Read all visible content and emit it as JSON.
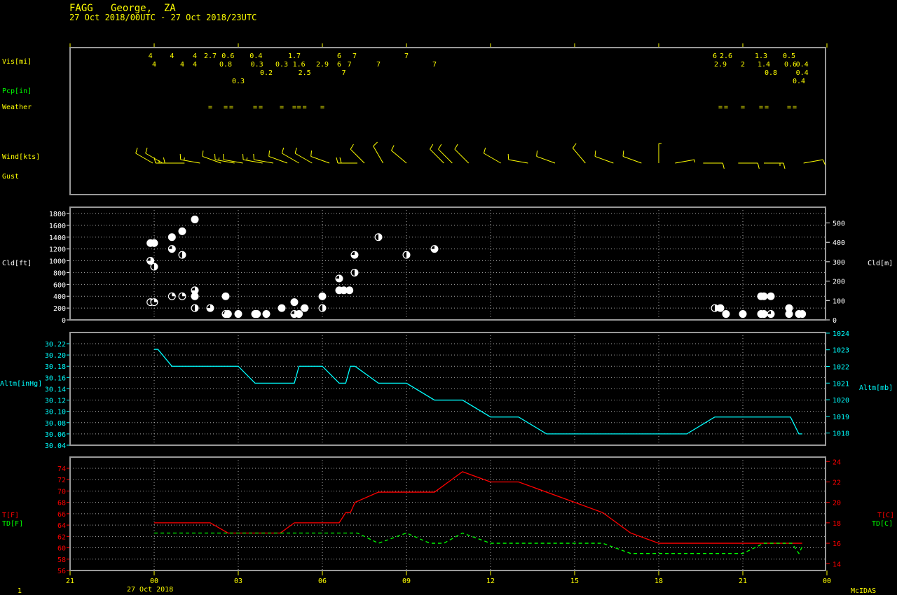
{
  "header": {
    "station": "FAGG   George,  ZA",
    "period": "27 Oct 2018/00UTC - 27 Oct 2018/23UTC"
  },
  "footer": {
    "frame": "1",
    "brand": "McIDAS",
    "date_label": "27 Oct 2018"
  },
  "colors": {
    "vis": "#ffff00",
    "pcp": "#00ff00",
    "cloud": "#ffffff",
    "altm": "#00ffff",
    "temp": "#ff0000",
    "dewpoint": "#00ff00",
    "frame": "#999999",
    "axis": "#ffff00"
  },
  "x_axis": {
    "ticks": [
      "21",
      "00",
      "03",
      "06",
      "09",
      "12",
      "15",
      "18",
      "21",
      "00"
    ],
    "range": [
      "26 21:00",
      "28 00:00"
    ]
  },
  "chart_data": [
    {
      "type": "table",
      "labels": {
        "vis": "Vis[mi]",
        "pcp": "Pcp[in]",
        "weather": "Weather",
        "wind": "Wind[kts]",
        "gust": "Gust"
      },
      "vis_row1": [
        [
          "26 23:52",
          "4"
        ],
        [
          "27 00:38",
          "4"
        ],
        [
          "27 01:27",
          "4"
        ],
        [
          "27 02:00",
          "2.7"
        ],
        [
          "27 02:38",
          "0.6"
        ],
        [
          "27 03:38",
          "0.4"
        ],
        [
          "27 04:00",
          "0.2"
        ],
        [
          "27 05:00",
          "1.7"
        ],
        [
          "27 05:22",
          "2.5"
        ],
        [
          "27 06:36",
          "6"
        ],
        [
          "27 06:46",
          "7"
        ],
        [
          "27 07:09",
          "7"
        ],
        [
          "27 09:00",
          "7"
        ],
        [
          "27 20:00",
          "6"
        ],
        [
          "27 20:24",
          "2.6"
        ],
        [
          "27 21:39",
          "1.3"
        ],
        [
          "27 22:00",
          "0.8"
        ],
        [
          "27 22:39",
          "0.5"
        ],
        [
          "27 23:07",
          "0.4"
        ]
      ],
      "vis_row2": [
        [
          "27 00:00",
          "4"
        ],
        [
          "27 01:00",
          "4"
        ],
        [
          "27 01:27",
          "4"
        ],
        [
          "27 02:33",
          "0.8"
        ],
        [
          "27 03:00",
          "0.3"
        ],
        [
          "27 03:40",
          "0.3"
        ],
        [
          "27 04:33",
          "0.3"
        ],
        [
          "27 05:10",
          "1.6"
        ],
        [
          "27 06:00",
          "2.9"
        ],
        [
          "27 06:36",
          "6"
        ],
        [
          "27 06:58",
          "7"
        ],
        [
          "27 08:00",
          "7"
        ],
        [
          "27 10:00",
          "7"
        ],
        [
          "27 20:12",
          "2.9"
        ],
        [
          "27 21:00",
          "2"
        ],
        [
          "27 21:45",
          "1.4"
        ],
        [
          "27 22:42",
          "0.6"
        ],
        [
          "27 23:00",
          "0.4"
        ],
        [
          "27 23:07",
          "0.4"
        ]
      ],
      "weather": {
        "symbol": "=",
        "times": [
          "27 02:00",
          "27 02:33",
          "27 02:45",
          "27 03:36",
          "27 03:48",
          "27 04:33",
          "27 05:00",
          "27 05:10",
          "27 05:22",
          "27 06:00",
          "27 20:12",
          "27 20:24",
          "27 21:00",
          "27 21:39",
          "27 21:51",
          "27 22:39",
          "27 22:51"
        ]
      },
      "wind": [
        [
          "26 23:57",
          300,
          10
        ],
        [
          "27 00:18",
          300,
          10
        ],
        [
          "27 00:45",
          270,
          15
        ],
        [
          "27 01:05",
          270,
          10
        ],
        [
          "27 01:38",
          280,
          15
        ],
        [
          "27 02:23",
          290,
          10
        ],
        [
          "27 02:52",
          280,
          15
        ],
        [
          "27 03:10",
          280,
          10
        ],
        [
          "27 03:52",
          280,
          15
        ],
        [
          "27 04:15",
          280,
          10
        ],
        [
          "27 04:45",
          290,
          10
        ],
        [
          "27 05:10",
          300,
          10
        ],
        [
          "27 05:38",
          300,
          10
        ],
        [
          "27 06:15",
          290,
          10
        ],
        [
          "27 07:15",
          270,
          20
        ],
        [
          "27 07:30",
          315,
          10
        ],
        [
          "27 08:10",
          330,
          10
        ],
        [
          "27 09:00",
          310,
          10
        ],
        [
          "27 10:20",
          315,
          10
        ],
        [
          "27 10:38",
          315,
          10
        ],
        [
          "27 11:13",
          315,
          10
        ],
        [
          "27 12:22",
          300,
          10
        ],
        [
          "27 13:20",
          280,
          10
        ],
        [
          "27 14:18",
          290,
          10
        ],
        [
          "27 15:23",
          320,
          10
        ],
        [
          "27 16:23",
          290,
          10
        ],
        [
          "27 17:23",
          290,
          10
        ],
        [
          "27 18:00",
          360,
          5
        ],
        [
          "27 18:35",
          80,
          5
        ],
        [
          "27 19:35",
          90,
          10
        ],
        [
          "27 20:50",
          90,
          10
        ],
        [
          "27 21:45",
          90,
          15
        ],
        [
          "27 23:10",
          80,
          10
        ]
      ]
    },
    {
      "type": "scatter",
      "ylabel_left": "Cld[ft]",
      "ylabel_right": "Cld[m]",
      "ylim": [
        0,
        1800
      ],
      "yticks": [
        0,
        200,
        400,
        600,
        800,
        1000,
        1200,
        1400,
        1600,
        1800
      ],
      "yticks_right": [
        0,
        100,
        200,
        300,
        400,
        500
      ],
      "grid": true,
      "points": [
        [
          "26 23:52",
          1300,
          1
        ],
        [
          "26 23:52",
          1000,
          0.75
        ],
        [
          "26 23:52",
          300,
          0.25
        ],
        [
          "27 00:00",
          1300,
          1
        ],
        [
          "27 00:00",
          900,
          0.5
        ],
        [
          "27 00:00",
          300,
          0.25
        ],
        [
          "27 00:38",
          1400,
          1
        ],
        [
          "27 00:38",
          1200,
          0.75
        ],
        [
          "27 00:38",
          400,
          0.25
        ],
        [
          "27 01:00",
          1500,
          1
        ],
        [
          "27 01:00",
          1100,
          0.5
        ],
        [
          "27 01:00",
          400,
          0.25
        ],
        [
          "27 01:27",
          1700,
          1
        ],
        [
          "27 01:27",
          500,
          0.75
        ],
        [
          "27 01:27",
          400,
          1
        ],
        [
          "27 01:27",
          200,
          0.5
        ],
        [
          "27 02:00",
          200,
          0.75
        ],
        [
          "27 02:33",
          400,
          1
        ],
        [
          "27 02:33",
          100,
          0.75
        ],
        [
          "27 02:38",
          100,
          1
        ],
        [
          "27 03:00",
          100,
          1
        ],
        [
          "27 03:36",
          100,
          1
        ],
        [
          "27 03:40",
          100,
          1
        ],
        [
          "27 04:00",
          100,
          1
        ],
        [
          "27 04:33",
          200,
          1
        ],
        [
          "27 05:00",
          300,
          1
        ],
        [
          "27 05:00",
          100,
          0.75
        ],
        [
          "27 05:10",
          100,
          1
        ],
        [
          "27 05:22",
          200,
          1
        ],
        [
          "27 06:00",
          400,
          1
        ],
        [
          "27 06:00",
          200,
          0.5
        ],
        [
          "27 06:36",
          700,
          0.75
        ],
        [
          "27 06:36",
          500,
          1
        ],
        [
          "27 06:46",
          500,
          1
        ],
        [
          "27 06:58",
          500,
          1
        ],
        [
          "27 07:09",
          1100,
          0.75
        ],
        [
          "27 07:09",
          800,
          0.5
        ],
        [
          "27 08:00",
          1400,
          0.5
        ],
        [
          "27 09:00",
          1100,
          0.5
        ],
        [
          "27 10:00",
          1200,
          0.75
        ],
        [
          "27 20:00",
          200,
          0.5
        ],
        [
          "27 20:12",
          200,
          1
        ],
        [
          "27 20:24",
          100,
          1
        ],
        [
          "27 21:00",
          100,
          1
        ],
        [
          "27 21:39",
          400,
          1
        ],
        [
          "27 21:39",
          100,
          1
        ],
        [
          "27 21:45",
          400,
          1
        ],
        [
          "27 21:45",
          100,
          1
        ],
        [
          "27 22:00",
          400,
          1
        ],
        [
          "27 22:00",
          100,
          0.75
        ],
        [
          "27 22:39",
          200,
          1
        ],
        [
          "27 22:39",
          100,
          1
        ],
        [
          "27 23:00",
          100,
          1
        ],
        [
          "27 23:07",
          100,
          1
        ]
      ]
    },
    {
      "type": "line",
      "ylabel_left": "Altm[inHg]",
      "ylabel_right": "Altm[mb]",
      "ylim": [
        30.04,
        30.235
      ],
      "yticks": [
        "30.04",
        "30.06",
        "30.08",
        "30.10",
        "30.12",
        "30.14",
        "30.16",
        "30.18",
        "30.20",
        "30.22"
      ],
      "yticks_right": [
        1018,
        1019,
        1020,
        1021,
        1022,
        1023,
        1024
      ],
      "grid": true,
      "series": [
        {
          "values": [
            [
              "27 00:00",
              30.21
            ],
            [
              "27 00:08",
              30.21
            ],
            [
              "27 00:38",
              30.18
            ],
            [
              "27 03:00",
              30.18
            ],
            [
              "27 03:36",
              30.15
            ],
            [
              "27 05:00",
              30.15
            ],
            [
              "27 05:10",
              30.18
            ],
            [
              "27 06:00",
              30.18
            ],
            [
              "27 06:36",
              30.15
            ],
            [
              "27 06:50",
              30.15
            ],
            [
              "27 07:00",
              30.18
            ],
            [
              "27 07:10",
              30.18
            ],
            [
              "27 08:00",
              30.15
            ],
            [
              "27 09:00",
              30.15
            ],
            [
              "27 10:00",
              30.12
            ],
            [
              "27 11:00",
              30.12
            ],
            [
              "27 12:00",
              30.09
            ],
            [
              "27 13:00",
              30.09
            ],
            [
              "27 14:00",
              30.06
            ],
            [
              "27 19:00",
              30.06
            ],
            [
              "27 20:00",
              30.09
            ],
            [
              "27 22:42",
              30.09
            ],
            [
              "27 23:00",
              30.06
            ],
            [
              "27 23:07",
              30.06
            ]
          ]
        }
      ]
    },
    {
      "type": "line",
      "ylabel_left": [
        "T[F]",
        "TD[F]"
      ],
      "ylabel_right": [
        "T[C]",
        "TD[C]"
      ],
      "ylim": [
        56,
        75.5
      ],
      "yticks": [
        56,
        58,
        60,
        62,
        64,
        66,
        68,
        70,
        72,
        74
      ],
      "yticks_right": [
        14,
        16,
        18,
        20,
        22,
        24
      ],
      "grid": true,
      "series": [
        {
          "name": "T",
          "values": [
            [
              "27 00:00",
              64.4
            ],
            [
              "27 02:00",
              64.4
            ],
            [
              "27 02:38",
              62.6
            ],
            [
              "27 04:30",
              62.6
            ],
            [
              "27 05:00",
              64.4
            ],
            [
              "27 06:36",
              64.4
            ],
            [
              "27 06:50",
              66.2
            ],
            [
              "27 07:00",
              66.2
            ],
            [
              "27 07:10",
              68
            ],
            [
              "27 08:00",
              69.8
            ],
            [
              "27 10:00",
              69.8
            ],
            [
              "27 10:30",
              71.6
            ],
            [
              "27 11:00",
              73.4
            ],
            [
              "27 12:00",
              71.6
            ],
            [
              "27 13:00",
              71.6
            ],
            [
              "27 15:00",
              68
            ],
            [
              "27 16:00",
              66.2
            ],
            [
              "27 17:00",
              62.6
            ],
            [
              "27 18:00",
              60.8
            ],
            [
              "27 23:07",
              60.8
            ]
          ]
        },
        {
          "name": "TD",
          "values": [
            [
              "27 00:00",
              62.6
            ],
            [
              "27 07:15",
              62.6
            ],
            [
              "27 08:00",
              60.8
            ],
            [
              "27 09:00",
              62.6
            ],
            [
              "27 09:50",
              60.8
            ],
            [
              "27 10:20",
              60.8
            ],
            [
              "27 11:00",
              62.6
            ],
            [
              "27 12:00",
              60.8
            ],
            [
              "27 16:00",
              60.8
            ],
            [
              "27 17:00",
              59
            ],
            [
              "27 21:00",
              59
            ],
            [
              "27 21:45",
              60.8
            ],
            [
              "27 22:45",
              60.8
            ],
            [
              "27 23:00",
              59
            ],
            [
              "27 23:07",
              60.2
            ]
          ]
        }
      ]
    }
  ]
}
